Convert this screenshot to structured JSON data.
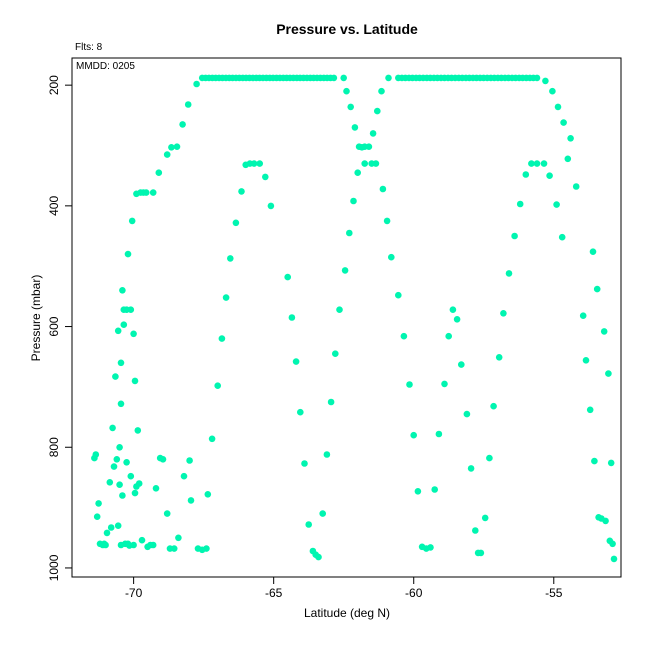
{
  "chart_data": {
    "type": "scatter",
    "title": "Pressure vs. Latitude",
    "xlabel": "Latitude (deg N)",
    "ylabel": "Pressure (mbar)",
    "xlim": [
      -72.2,
      -52.6
    ],
    "ylim": [
      1015,
      155
    ],
    "y_inverted": true,
    "grid": false,
    "legend": "none",
    "marker_color": "#00f5b0",
    "annotations": {
      "flts": "Flts: 8",
      "mmdd": "MMDD: 0205"
    },
    "x_ticks": [
      -70,
      -65,
      -60,
      -55
    ],
    "x_tick_labels": [
      "-70",
      "-65",
      "-60",
      "-55"
    ],
    "y_ticks": [
      200,
      400,
      600,
      800,
      1000
    ],
    "y_tick_labels": [
      "200",
      "400",
      "600",
      "800",
      "1000"
    ],
    "points": [
      [
        -71.4,
        818
      ],
      [
        -71.35,
        812
      ],
      [
        -71.3,
        915
      ],
      [
        -71.25,
        893
      ],
      [
        -71.2,
        960
      ],
      [
        -71.1,
        962
      ],
      [
        -71.05,
        960
      ],
      [
        -71.0,
        962
      ],
      [
        -70.95,
        942
      ],
      [
        -70.85,
        858
      ],
      [
        -70.8,
        933
      ],
      [
        -70.75,
        768
      ],
      [
        -70.7,
        832
      ],
      [
        -70.65,
        683
      ],
      [
        -70.6,
        820
      ],
      [
        -70.55,
        930
      ],
      [
        -70.55,
        607
      ],
      [
        -70.5,
        862
      ],
      [
        -70.5,
        800
      ],
      [
        -70.45,
        728
      ],
      [
        -70.45,
        660
      ],
      [
        -70.45,
        962
      ],
      [
        -70.4,
        540
      ],
      [
        -70.4,
        880
      ],
      [
        -70.35,
        597
      ],
      [
        -70.35,
        572
      ],
      [
        -70.3,
        960
      ],
      [
        -70.25,
        825
      ],
      [
        -70.25,
        572
      ],
      [
        -70.2,
        480
      ],
      [
        -70.2,
        960
      ],
      [
        -70.15,
        963
      ],
      [
        -70.1,
        848
      ],
      [
        -70.1,
        572
      ],
      [
        -70.05,
        425
      ],
      [
        -70.0,
        962
      ],
      [
        -70.0,
        612
      ],
      [
        -69.95,
        690
      ],
      [
        -69.95,
        876
      ],
      [
        -69.9,
        380
      ],
      [
        -69.9,
        865
      ],
      [
        -69.85,
        772
      ],
      [
        -69.8,
        860
      ],
      [
        -69.75,
        378
      ],
      [
        -69.7,
        954
      ],
      [
        -69.65,
        378
      ],
      [
        -69.55,
        378
      ],
      [
        -69.5,
        965
      ],
      [
        -69.4,
        962
      ],
      [
        -69.3,
        962
      ],
      [
        -69.3,
        378
      ],
      [
        -69.2,
        868
      ],
      [
        -69.1,
        345
      ],
      [
        -69.05,
        818
      ],
      [
        -68.95,
        820
      ],
      [
        -68.8,
        315
      ],
      [
        -68.8,
        910
      ],
      [
        -68.7,
        968
      ],
      [
        -68.65,
        303
      ],
      [
        -68.55,
        968
      ],
      [
        -68.45,
        302
      ],
      [
        -68.4,
        950
      ],
      [
        -68.25,
        265
      ],
      [
        -68.2,
        848
      ],
      [
        -68.05,
        232
      ],
      [
        -68.0,
        822
      ],
      [
        -67.95,
        888
      ],
      [
        -67.75,
        198
      ],
      [
        -67.7,
        968
      ],
      [
        -67.55,
        970
      ],
      [
        -67.4,
        968
      ],
      [
        -67.35,
        878
      ],
      [
        -67.2,
        786
      ],
      [
        -67.0,
        698
      ],
      [
        -66.85,
        620
      ],
      [
        -66.7,
        552
      ],
      [
        -66.55,
        487
      ],
      [
        -66.35,
        428
      ],
      [
        -66.15,
        376
      ],
      [
        -66.0,
        332
      ],
      [
        -65.85,
        330
      ],
      [
        -65.7,
        330
      ],
      [
        -65.5,
        330
      ],
      [
        -65.3,
        352
      ],
      [
        -65.1,
        400
      ],
      [
        -64.5,
        518
      ],
      [
        -64.35,
        585
      ],
      [
        -64.2,
        658
      ],
      [
        -64.05,
        742
      ],
      [
        -63.9,
        827
      ],
      [
        -63.75,
        928
      ],
      [
        -63.6,
        972
      ],
      [
        -63.5,
        978
      ],
      [
        -63.4,
        982
      ],
      [
        -63.25,
        910
      ],
      [
        -63.1,
        812
      ],
      [
        -62.95,
        725
      ],
      [
        -62.8,
        645
      ],
      [
        -62.65,
        572
      ],
      [
        -62.45,
        507
      ],
      [
        -62.3,
        445
      ],
      [
        -62.15,
        392
      ],
      [
        -62.0,
        345
      ],
      [
        -61.85,
        303
      ],
      [
        -61.75,
        302
      ],
      [
        -61.6,
        302
      ],
      [
        -61.45,
        280
      ],
      [
        -61.3,
        243
      ],
      [
        -61.15,
        210
      ],
      [
        -60.95,
        425
      ],
      [
        -60.8,
        485
      ],
      [
        -60.55,
        548
      ],
      [
        -60.35,
        616
      ],
      [
        -60.15,
        696
      ],
      [
        -60.0,
        780
      ],
      [
        -59.85,
        873
      ],
      [
        -59.7,
        965
      ],
      [
        -59.55,
        968
      ],
      [
        -59.4,
        966
      ],
      [
        -59.25,
        870
      ],
      [
        -59.1,
        778
      ],
      [
        -58.9,
        695
      ],
      [
        -58.75,
        616
      ],
      [
        -58.6,
        572
      ],
      [
        -58.45,
        588
      ],
      [
        -58.3,
        663
      ],
      [
        -58.1,
        745
      ],
      [
        -57.95,
        835
      ],
      [
        -57.8,
        938
      ],
      [
        -57.7,
        975
      ],
      [
        -57.6,
        975
      ],
      [
        -57.45,
        917
      ],
      [
        -57.3,
        818
      ],
      [
        -57.15,
        732
      ],
      [
        -56.95,
        651
      ],
      [
        -56.8,
        578
      ],
      [
        -56.6,
        512
      ],
      [
        -56.4,
        450
      ],
      [
        -56.2,
        397
      ],
      [
        -56.0,
        348
      ],
      [
        -55.8,
        330
      ],
      [
        -55.6,
        330
      ],
      [
        -55.35,
        330
      ],
      [
        -55.15,
        350
      ],
      [
        -54.9,
        398
      ],
      [
        -54.7,
        452
      ],
      [
        -54.5,
        322
      ],
      [
        -54.2,
        368
      ],
      [
        -53.95,
        582
      ],
      [
        -53.85,
        656
      ],
      [
        -53.7,
        738
      ],
      [
        -53.6,
        476
      ],
      [
        -53.55,
        823
      ],
      [
        -53.45,
        538
      ],
      [
        -53.4,
        916
      ],
      [
        -53.3,
        918
      ],
      [
        -53.2,
        608
      ],
      [
        -53.15,
        922
      ],
      [
        -53.05,
        678
      ],
      [
        -53.0,
        955
      ],
      [
        -52.95,
        826
      ],
      [
        -52.9,
        960
      ],
      [
        -52.85,
        985
      ],
      [
        -62.5,
        188
      ],
      [
        -62.4,
        210
      ],
      [
        -62.25,
        236
      ],
      [
        -62.1,
        270
      ],
      [
        -61.95,
        302
      ],
      [
        -61.75,
        330
      ],
      [
        -61.5,
        330
      ],
      [
        -61.35,
        330
      ],
      [
        -61.1,
        372
      ],
      [
        -60.9,
        188
      ],
      [
        -55.3,
        193
      ],
      [
        -55.05,
        210
      ],
      [
        -54.85,
        236
      ],
      [
        -54.65,
        262
      ],
      [
        -54.4,
        288
      ]
    ],
    "plateau_segments": [
      {
        "x_start": -67.55,
        "x_end": -62.85,
        "count": 40,
        "y": 188
      },
      {
        "x_start": -60.55,
        "x_end": -55.6,
        "count": 40,
        "y": 188
      }
    ]
  }
}
